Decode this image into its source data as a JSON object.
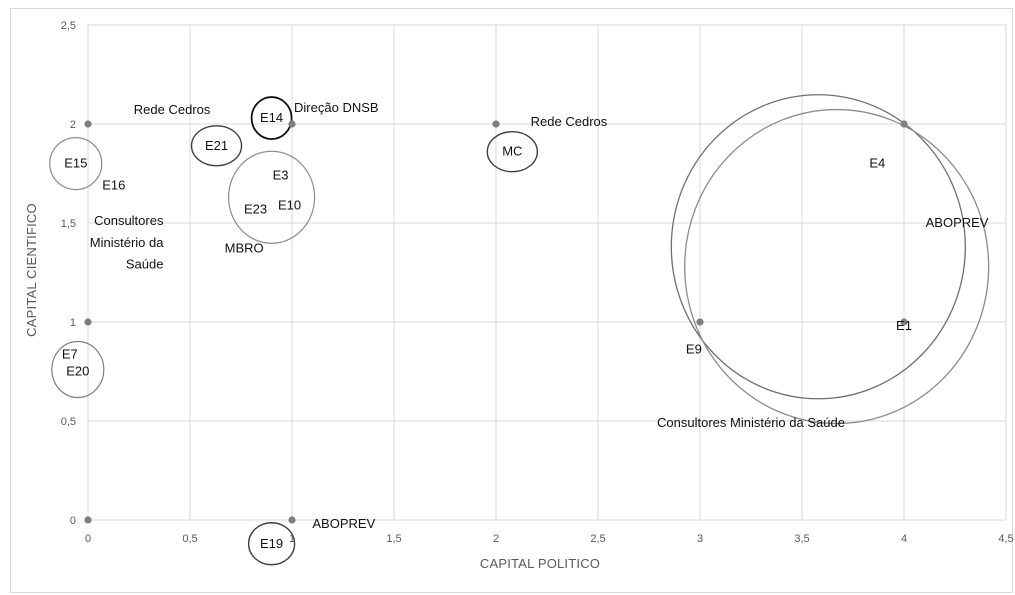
{
  "chart_data": {
    "type": "scatter",
    "xlabel": "CAPITAL POLITICO",
    "ylabel": "CAPITAL CIENTIFICO",
    "xlim": [
      0,
      4.5
    ],
    "ylim": [
      0,
      2.5
    ],
    "xticks": [
      "0",
      "0,5",
      "1",
      "1,5",
      "2",
      "2,5",
      "3",
      "3,5",
      "4",
      "4,5"
    ],
    "yticks": [
      "0",
      "0,5",
      "1",
      "1,5",
      "2",
      "2,5"
    ],
    "grid": true,
    "points": [
      {
        "x": 0,
        "y": 0
      },
      {
        "x": 0,
        "y": 1
      },
      {
        "x": 0,
        "y": 2
      },
      {
        "x": 1,
        "y": 0
      },
      {
        "x": 1,
        "y": 2
      },
      {
        "x": 2,
        "y": 2
      },
      {
        "x": 3,
        "y": 1
      },
      {
        "x": 4,
        "y": 1
      },
      {
        "x": 4,
        "y": 2
      }
    ],
    "circle_groups": [
      {
        "labels": [
          "E15"
        ],
        "x": -0.06,
        "y": 1.8
      },
      {
        "labels": [
          "E7",
          "E20"
        ],
        "x": -0.05,
        "y": 0.76
      },
      {
        "labels": [
          "E21"
        ],
        "x": 0.63,
        "y": 1.89
      },
      {
        "labels": [
          "E14"
        ],
        "x": 0.9,
        "y": 2.03
      },
      {
        "labels": [
          "E3",
          "E23",
          "E10"
        ],
        "x": 0.9,
        "y": 1.63
      },
      {
        "labels": [
          "MC"
        ],
        "x": 2.08,
        "y": 1.86
      },
      {
        "labels": [
          "E19"
        ],
        "x": 0.9,
        "y": -0.12
      },
      {
        "labels": [
          "E9",
          "E1",
          "E4"
        ],
        "x": 3.58,
        "y": 1.38
      },
      {
        "labels": [
          "E1"
        ],
        "x": 3.67,
        "y": 1.28
      }
    ],
    "annotations": [
      {
        "text": "E16",
        "x": 0.07,
        "y": 1.69,
        "anchor": "start"
      },
      {
        "text": "Rede Cedros",
        "x": 0.6,
        "y": 2.07,
        "anchor": "end"
      },
      {
        "text": "Direção DNSB",
        "x": 1.01,
        "y": 2.08,
        "anchor": "start"
      },
      {
        "text": "Rede Cedros",
        "x": 2.17,
        "y": 2.01,
        "anchor": "start"
      },
      {
        "text": "Consultores",
        "x": 0.37,
        "y": 1.51,
        "anchor": "end"
      },
      {
        "text": "Ministério da",
        "x": 0.37,
        "y": 1.4,
        "anchor": "end"
      },
      {
        "text": "Saúde",
        "x": 0.37,
        "y": 1.29,
        "anchor": "end"
      },
      {
        "text": "MBRO",
        "x": 0.67,
        "y": 1.37,
        "anchor": "start"
      },
      {
        "text": "E4",
        "x": 3.83,
        "y": 1.8,
        "anchor": "start"
      },
      {
        "text": "ABOPREV",
        "x": 4.26,
        "y": 1.5,
        "anchor": "middle"
      },
      {
        "text": "E1",
        "x": 4.0,
        "y": 0.98,
        "anchor": "middle"
      },
      {
        "text": "E9",
        "x": 2.97,
        "y": 0.86,
        "anchor": "middle"
      },
      {
        "text": "Consultores Ministério da Saúde",
        "x": 3.25,
        "y": 0.49,
        "anchor": "middle"
      },
      {
        "text": "ABOPREV",
        "x": 1.1,
        "y": -0.02,
        "anchor": "start"
      }
    ]
  }
}
